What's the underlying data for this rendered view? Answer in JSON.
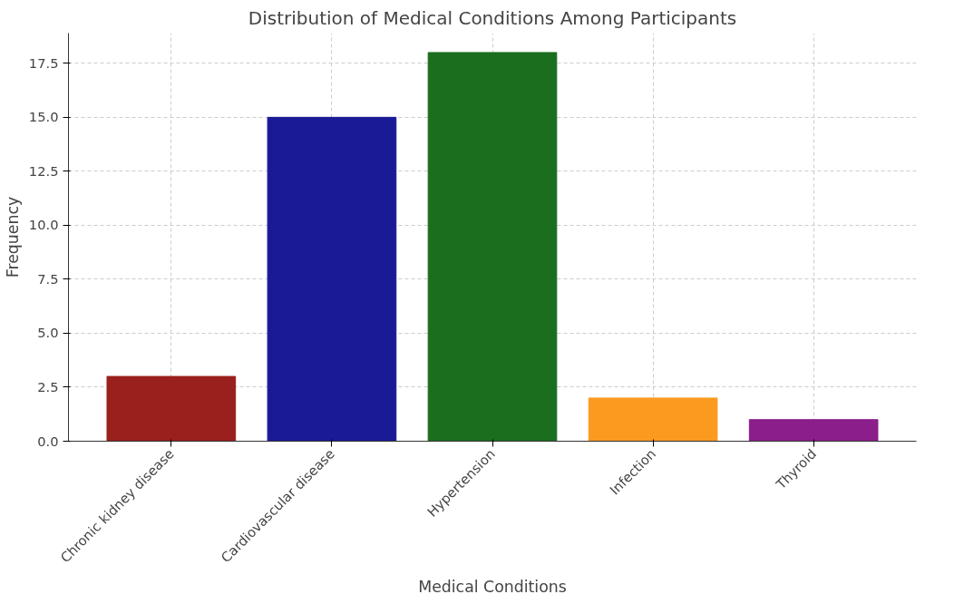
{
  "chart_data": {
    "type": "bar",
    "title": "Distribution of Medical Conditions Among Participants",
    "xlabel": "Medical Conditions",
    "ylabel": "Frequency",
    "categories": [
      "Chronic kidney disease",
      "Cardiovascular disease",
      "Hypertension",
      "Infection",
      "Thyroid"
    ],
    "values": [
      3,
      15,
      18,
      2,
      1
    ],
    "colors": [
      "#9a201e",
      "#1a1a96",
      "#1a6e1e",
      "#fb9a1f",
      "#8b1e8b"
    ],
    "ylim": [
      0,
      18.9
    ],
    "yticks": [
      {
        "value": 0,
        "label": "0.0"
      },
      {
        "value": 2.5,
        "label": "2.5"
      },
      {
        "value": 5,
        "label": "5.0"
      },
      {
        "value": 7.5,
        "label": "7.5"
      },
      {
        "value": 10,
        "label": "10.0"
      },
      {
        "value": 12.5,
        "label": "12.5"
      },
      {
        "value": 15,
        "label": "15.0"
      },
      {
        "value": 17.5,
        "label": "17.5"
      }
    ],
    "grid": true
  }
}
